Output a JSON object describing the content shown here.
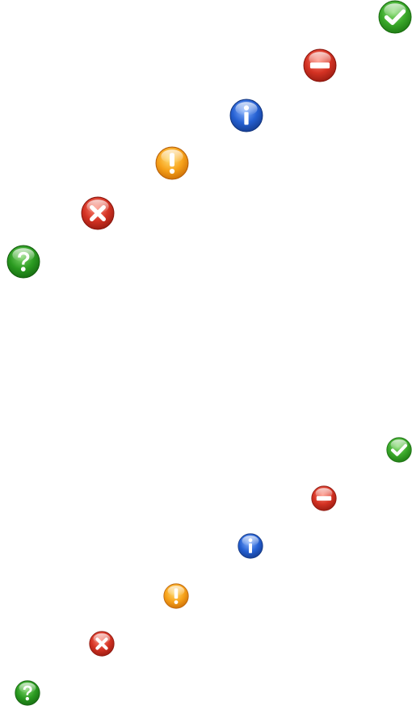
{
  "colors": {
    "success_green": "#2e9b1e",
    "question_green": "#1f8f19",
    "block_red": "#c8281c",
    "error_red": "#cc1f1f",
    "info_blue": "#1d55c4",
    "warning_orange": "#f59a0c"
  },
  "icon_sets": [
    {
      "set": "large",
      "icons": [
        {
          "name": "success-check-icon"
        },
        {
          "name": "blocked-minus-icon"
        },
        {
          "name": "information-icon"
        },
        {
          "name": "warning-exclamation-icon"
        },
        {
          "name": "error-cross-icon"
        },
        {
          "name": "help-question-icon"
        }
      ]
    },
    {
      "set": "small",
      "icons": [
        {
          "name": "success-check-icon"
        },
        {
          "name": "blocked-minus-icon"
        },
        {
          "name": "information-icon"
        },
        {
          "name": "warning-exclamation-icon"
        },
        {
          "name": "error-cross-icon"
        },
        {
          "name": "help-question-icon"
        }
      ]
    }
  ]
}
